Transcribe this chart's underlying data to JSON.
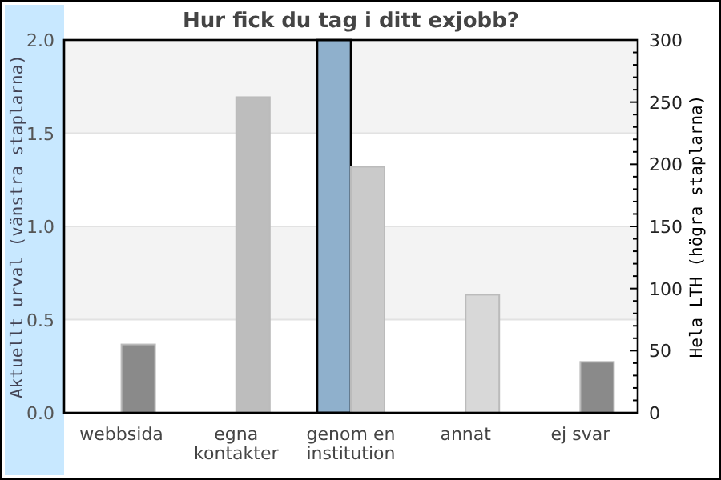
{
  "chart_data": {
    "type": "bar",
    "title": "Hur fick du tag i ditt exjobb?",
    "ylabel": "Aktuellt urval (vänstra staplarna)",
    "y2label": "Hela LTH (högra staplarna)",
    "categories": [
      "webbsida",
      "egna kontakter",
      "genom en institution",
      "annat",
      "ej svar"
    ],
    "series": [
      {
        "color": "#8fb0cc",
        "values": [
          0,
          0,
          2.0,
          0,
          0
        ]
      },
      {
        "axis": "y2",
        "colors": [
          "#8a8a8a",
          "#bdbdbd",
          "#cacaca",
          "#d8d8d8",
          "#8a8a8a"
        ],
        "values": [
          55,
          254,
          198,
          95,
          41
        ]
      }
    ],
    "ylim": [
      0,
      2
    ],
    "yticks": [
      {
        "value": 0,
        "label": "0.0"
      },
      0.5,
      {
        "value": 1,
        "label": "1.0"
      },
      1.5,
      {
        "value": 2,
        "label": "2.0"
      }
    ],
    "y2lim": [
      0,
      300
    ],
    "y2ticks": [
      0,
      {
        "value": 10,
        "label": null
      },
      {
        "value": 20,
        "label": null
      },
      {
        "value": 30,
        "label": null
      },
      {
        "value": 40,
        "label": null
      },
      50,
      {
        "value": 60,
        "label": null
      },
      {
        "value": 70,
        "label": null
      },
      {
        "value": 80,
        "label": null
      },
      {
        "value": 90,
        "label": null
      },
      100,
      {
        "value": 110,
        "label": null
      },
      {
        "value": 120,
        "label": null
      },
      {
        "value": 130,
        "label": null
      },
      {
        "value": 140,
        "label": null
      },
      150,
      {
        "value": 160,
        "label": null
      },
      {
        "value": 170,
        "label": null
      },
      {
        "value": 180,
        "label": null
      },
      {
        "value": 190,
        "label": null
      },
      200,
      {
        "value": 210,
        "label": null
      },
      {
        "value": 220,
        "label": null
      },
      {
        "value": 230,
        "label": null
      },
      {
        "value": 240,
        "label": null
      },
      250,
      {
        "value": 260,
        "label": null
      },
      {
        "value": 270,
        "label": null
      },
      {
        "value": 280,
        "label": null
      },
      {
        "value": 290,
        "label": null
      },
      300
    ],
    "grid": "y"
  }
}
